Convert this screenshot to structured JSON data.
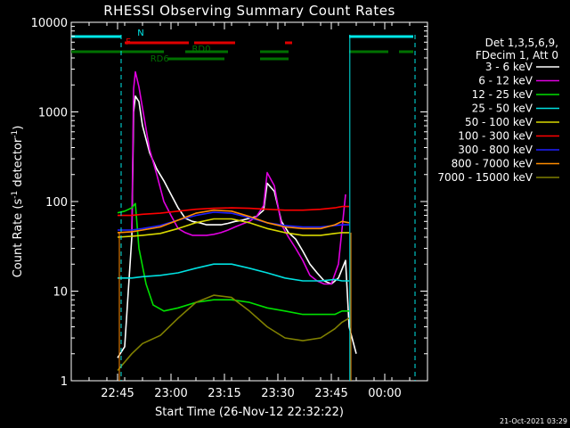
{
  "chart_data": {
    "type": "line",
    "title": "RHESSI Observing Summary Count Rates",
    "xlabel": "Start Time (26-Nov-12 22:32:22)",
    "ylabel": "Count Rate (s",
    "ylabel_sup1": "-1",
    "ylabel_mid": " detector",
    "ylabel_sup2": "-1",
    "ylabel_end": ")",
    "y_scale": "log",
    "ylim": [
      1,
      10000
    ],
    "x_range_minutes_from_2232": [
      0,
      100
    ],
    "x_ticks": [
      {
        "label": "22:45",
        "min": 13
      },
      {
        "label": "23:00",
        "min": 28
      },
      {
        "label": "23:15",
        "min": 43
      },
      {
        "label": "23:30",
        "min": 58
      },
      {
        "label": "23:45",
        "min": 73
      },
      {
        "label": "00:00",
        "min": 88
      }
    ],
    "y_ticks": [
      {
        "label": "1",
        "value": 1
      },
      {
        "label": "10",
        "value": 10
      },
      {
        "label": "100",
        "value": 100
      },
      {
        "label": "1000",
        "value": 1000
      },
      {
        "label": "10000",
        "value": 10000
      }
    ],
    "legend": {
      "header1": "Det 1,3,5,6,9,",
      "header2": "FDecim 1, Att 0",
      "position": "right"
    },
    "series": [
      {
        "name": "3 - 6 keV",
        "color": "#ffffff",
        "points": [
          [
            13,
            1.8
          ],
          [
            15,
            2.4
          ],
          [
            17,
            40
          ],
          [
            17.5,
            1000
          ],
          [
            18,
            1500
          ],
          [
            19,
            1300
          ],
          [
            20,
            700
          ],
          [
            22,
            350
          ],
          [
            24,
            230
          ],
          [
            26,
            170
          ],
          [
            28,
            120
          ],
          [
            30,
            85
          ],
          [
            32,
            65
          ],
          [
            34,
            60
          ],
          [
            36,
            58
          ],
          [
            38,
            55
          ],
          [
            40,
            55
          ],
          [
            42,
            55
          ],
          [
            44,
            57
          ],
          [
            46,
            60
          ],
          [
            48,
            62
          ],
          [
            50,
            65
          ],
          [
            52,
            68
          ],
          [
            54,
            80
          ],
          [
            55,
            160
          ],
          [
            57,
            130
          ],
          [
            59,
            60
          ],
          [
            61,
            45
          ],
          [
            63,
            38
          ],
          [
            65,
            28
          ],
          [
            67,
            20
          ],
          [
            69,
            16
          ],
          [
            71,
            13
          ],
          [
            73,
            12
          ],
          [
            75,
            14
          ],
          [
            77,
            22
          ],
          [
            78,
            4
          ],
          [
            80,
            2
          ]
        ]
      },
      {
        "name": "6 - 12 keV",
        "color": "#e000e0",
        "points": [
          [
            17,
            45
          ],
          [
            17.5,
            1800
          ],
          [
            18,
            2800
          ],
          [
            19,
            1900
          ],
          [
            20,
            1100
          ],
          [
            22,
            380
          ],
          [
            24,
            200
          ],
          [
            26,
            100
          ],
          [
            28,
            70
          ],
          [
            30,
            50
          ],
          [
            32,
            45
          ],
          [
            34,
            42
          ],
          [
            36,
            42
          ],
          [
            38,
            42
          ],
          [
            40,
            43
          ],
          [
            42,
            45
          ],
          [
            44,
            48
          ],
          [
            46,
            52
          ],
          [
            48,
            56
          ],
          [
            50,
            60
          ],
          [
            52,
            68
          ],
          [
            54,
            90
          ],
          [
            55,
            210
          ],
          [
            57,
            150
          ],
          [
            59,
            55
          ],
          [
            61,
            40
          ],
          [
            63,
            30
          ],
          [
            65,
            22
          ],
          [
            67,
            15
          ],
          [
            69,
            13
          ],
          [
            71,
            12
          ],
          [
            73,
            12
          ],
          [
            75,
            20
          ],
          [
            77,
            120
          ]
        ]
      },
      {
        "name": "12 - 25 keV",
        "color": "#00e000",
        "points": [
          [
            13,
            75
          ],
          [
            15,
            78
          ],
          [
            17,
            85
          ],
          [
            18,
            95
          ],
          [
            19,
            30
          ],
          [
            21,
            12
          ],
          [
            23,
            7
          ],
          [
            26,
            6
          ],
          [
            30,
            6.5
          ],
          [
            35,
            7.5
          ],
          [
            40,
            8
          ],
          [
            45,
            8
          ],
          [
            50,
            7.5
          ],
          [
            55,
            6.5
          ],
          [
            60,
            6
          ],
          [
            65,
            5.5
          ],
          [
            70,
            5.5
          ],
          [
            74,
            5.5
          ],
          [
            76,
            6
          ],
          [
            78,
            6
          ]
        ]
      },
      {
        "name": "25 - 50 keV",
        "color": "#00e0e0",
        "points": [
          [
            13,
            14
          ],
          [
            17,
            14
          ],
          [
            20,
            14.5
          ],
          [
            25,
            15
          ],
          [
            30,
            16
          ],
          [
            35,
            18
          ],
          [
            40,
            20
          ],
          [
            45,
            20
          ],
          [
            50,
            18
          ],
          [
            55,
            16
          ],
          [
            60,
            14
          ],
          [
            65,
            13
          ],
          [
            70,
            13
          ],
          [
            74,
            13.5
          ],
          [
            76,
            13
          ],
          [
            78,
            13
          ]
        ]
      },
      {
        "name": "50 - 100 keV",
        "color": "#d8d800",
        "points": [
          [
            13,
            40
          ],
          [
            17,
            41
          ],
          [
            20,
            42
          ],
          [
            25,
            44
          ],
          [
            30,
            50
          ],
          [
            35,
            58
          ],
          [
            40,
            64
          ],
          [
            45,
            64
          ],
          [
            50,
            58
          ],
          [
            55,
            50
          ],
          [
            60,
            45
          ],
          [
            65,
            42
          ],
          [
            70,
            42
          ],
          [
            74,
            44
          ],
          [
            76,
            45
          ],
          [
            78,
            45
          ]
        ]
      },
      {
        "name": "100 - 300 keV",
        "color": "#ff0000",
        "points": [
          [
            13,
            70
          ],
          [
            17,
            70
          ],
          [
            20,
            72
          ],
          [
            25,
            74
          ],
          [
            30,
            78
          ],
          [
            35,
            82
          ],
          [
            40,
            84
          ],
          [
            45,
            85
          ],
          [
            50,
            84
          ],
          [
            55,
            82
          ],
          [
            60,
            80
          ],
          [
            65,
            80
          ],
          [
            70,
            82
          ],
          [
            74,
            85
          ],
          [
            76,
            88
          ],
          [
            78,
            88
          ]
        ]
      },
      {
        "name": "300 - 800 keV",
        "color": "#2020ff",
        "points": [
          [
            13,
            48
          ],
          [
            17,
            48
          ],
          [
            20,
            50
          ],
          [
            25,
            54
          ],
          [
            30,
            62
          ],
          [
            35,
            70
          ],
          [
            40,
            76
          ],
          [
            45,
            74
          ],
          [
            50,
            66
          ],
          [
            55,
            58
          ],
          [
            60,
            54
          ],
          [
            65,
            52
          ],
          [
            70,
            52
          ],
          [
            74,
            54
          ],
          [
            76,
            55
          ],
          [
            78,
            55
          ]
        ]
      },
      {
        "name": "800 - 7000 keV",
        "color": "#ff8c00",
        "points": [
          [
            13,
            45
          ],
          [
            17,
            46
          ],
          [
            20,
            48
          ],
          [
            25,
            52
          ],
          [
            30,
            62
          ],
          [
            35,
            74
          ],
          [
            40,
            80
          ],
          [
            45,
            78
          ],
          [
            50,
            68
          ],
          [
            55,
            58
          ],
          [
            60,
            52
          ],
          [
            65,
            50
          ],
          [
            70,
            50
          ],
          [
            74,
            55
          ],
          [
            76,
            60
          ],
          [
            78,
            58
          ]
        ]
      },
      {
        "name": "7000 - 15000 keV",
        "color": "#808000",
        "points": [
          [
            13,
            1.3
          ],
          [
            17,
            2
          ],
          [
            20,
            2.6
          ],
          [
            25,
            3.2
          ],
          [
            30,
            5
          ],
          [
            35,
            7.5
          ],
          [
            40,
            9
          ],
          [
            45,
            8.5
          ],
          [
            50,
            6
          ],
          [
            55,
            4
          ],
          [
            60,
            3
          ],
          [
            65,
            2.8
          ],
          [
            70,
            3
          ],
          [
            74,
            3.8
          ],
          [
            76,
            4.5
          ],
          [
            78,
            5
          ]
        ]
      }
    ],
    "status_bars": [
      {
        "label": "N",
        "color": "#00e8e8",
        "segments": [
          [
            0,
            14
          ],
          [
            78,
            96
          ]
        ]
      },
      {
        "label": "F",
        "color": "#e00000",
        "segments": [
          [
            15,
            33
          ],
          [
            34.5,
            46
          ],
          [
            60,
            62
          ]
        ]
      },
      {
        "label": "RD0",
        "color": "#007000",
        "segments": [
          [
            0,
            26
          ],
          [
            32,
            44
          ],
          [
            53,
            61
          ],
          [
            78,
            89
          ],
          [
            92,
            96
          ]
        ]
      },
      {
        "label": "RD6",
        "color": "#007000",
        "segments": [
          [
            27,
            43
          ],
          [
            53,
            61
          ]
        ]
      }
    ],
    "cyan_marks_min": [
      14,
      78.2,
      96.5
    ],
    "orange_marks_min": [
      13.5,
      78.5
    ]
  },
  "footer_date": "21-Oct-2021 03:29"
}
